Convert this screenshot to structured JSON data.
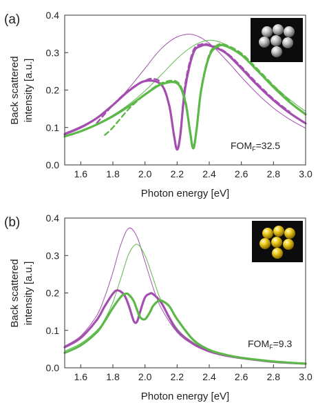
{
  "chart_data": [
    {
      "type": "line",
      "panel_label": "(a)",
      "xlabel": "Photon energy [eV]",
      "ylabel_line1": "Back scattered",
      "ylabel_line2": "intensity [a.u.]",
      "xlim": [
        1.5,
        3.0
      ],
      "ylim": [
        0.0,
        0.4
      ],
      "xticks": [
        1.6,
        1.8,
        2.0,
        2.2,
        2.4,
        2.6,
        2.8,
        3.0
      ],
      "yticks": [
        0.0,
        0.1,
        0.2,
        0.3,
        0.4
      ],
      "xtick_labels": [
        "1.6",
        "1.8",
        "2.0",
        "2.2",
        "2.4",
        "2.6",
        "2.8",
        "3.0"
      ],
      "ytick_labels": [
        "0.0",
        "0.1",
        "0.2",
        "0.3",
        "0.4"
      ],
      "annotation_main": "FOM",
      "annotation_sub": "F",
      "annotation_value": "=32.5",
      "inset": "silver-heptamer",
      "grid": false,
      "series": [
        {
          "color": "#a44fb0",
          "style": "thin",
          "x": [
            1.5,
            1.6,
            1.7,
            1.8,
            1.9,
            2.0,
            2.1,
            2.2,
            2.3,
            2.4,
            2.5,
            2.6,
            2.7,
            2.8,
            2.9,
            3.0
          ],
          "y": [
            0.085,
            0.103,
            0.127,
            0.16,
            0.205,
            0.258,
            0.31,
            0.342,
            0.348,
            0.325,
            0.283,
            0.235,
            0.19,
            0.152,
            0.122,
            0.098
          ]
        },
        {
          "color": "#5cb848",
          "style": "thin",
          "x": [
            1.5,
            1.6,
            1.7,
            1.8,
            1.9,
            2.0,
            2.1,
            2.2,
            2.3,
            2.4,
            2.5,
            2.6,
            2.7,
            2.8,
            2.9,
            3.0
          ],
          "y": [
            0.078,
            0.092,
            0.11,
            0.133,
            0.162,
            0.198,
            0.24,
            0.284,
            0.318,
            0.333,
            0.322,
            0.292,
            0.253,
            0.212,
            0.175,
            0.143
          ]
        },
        {
          "color": "#a44fb0",
          "style": "thick",
          "x": [
            1.5,
            1.6,
            1.7,
            1.8,
            1.9,
            2.0,
            2.1,
            2.15,
            2.18,
            2.2,
            2.22,
            2.25,
            2.3,
            2.35,
            2.4,
            2.5,
            2.6,
            2.7,
            2.8,
            2.9,
            3.0
          ],
          "y": [
            0.082,
            0.1,
            0.125,
            0.16,
            0.198,
            0.224,
            0.215,
            0.16,
            0.08,
            0.041,
            0.08,
            0.205,
            0.298,
            0.318,
            0.319,
            0.3,
            0.258,
            0.213,
            0.173,
            0.139,
            0.111
          ]
        },
        {
          "color": "#a44fb0",
          "style": "dashed",
          "x": [
            1.7,
            1.8,
            1.9,
            2.0,
            2.05,
            2.1,
            2.15,
            2.18,
            2.2,
            2.22,
            2.25,
            2.3,
            2.35,
            2.4,
            2.5,
            2.6,
            2.7,
            2.8,
            2.9
          ],
          "y": [
            0.112,
            0.16,
            0.2,
            0.225,
            0.23,
            0.218,
            0.16,
            0.08,
            0.045,
            0.085,
            0.215,
            0.305,
            0.322,
            0.321,
            0.302,
            0.262,
            0.217,
            0.176,
            0.142
          ]
        },
        {
          "color": "#5cb848",
          "style": "thick",
          "x": [
            1.5,
            1.6,
            1.7,
            1.8,
            1.9,
            2.0,
            2.1,
            2.2,
            2.25,
            2.28,
            2.3,
            2.32,
            2.35,
            2.4,
            2.45,
            2.5,
            2.6,
            2.7,
            2.8,
            2.9,
            3.0
          ],
          "y": [
            0.076,
            0.09,
            0.108,
            0.13,
            0.157,
            0.188,
            0.215,
            0.218,
            0.17,
            0.09,
            0.044,
            0.09,
            0.2,
            0.29,
            0.316,
            0.318,
            0.294,
            0.252,
            0.208,
            0.168,
            0.135
          ]
        },
        {
          "color": "#5cb848",
          "style": "dashed",
          "x": [
            1.75,
            1.8,
            1.9,
            2.0,
            2.1,
            2.2,
            2.25,
            2.28,
            2.3,
            2.32,
            2.35,
            2.4,
            2.45,
            2.5,
            2.6,
            2.7,
            2.8,
            2.9
          ],
          "y": [
            0.08,
            0.1,
            0.15,
            0.188,
            0.218,
            0.222,
            0.175,
            0.095,
            0.05,
            0.095,
            0.205,
            0.295,
            0.32,
            0.321,
            0.298,
            0.256,
            0.212,
            0.172
          ]
        }
      ]
    },
    {
      "type": "line",
      "panel_label": "(b)",
      "xlabel": "Photon energy [eV]",
      "ylabel_line1": "Back scattered",
      "ylabel_line2": "intensity [a.u.]",
      "xlim": [
        1.5,
        3.0
      ],
      "ylim": [
        0.0,
        0.4
      ],
      "xticks": [
        1.6,
        1.8,
        2.0,
        2.2,
        2.4,
        2.6,
        2.8,
        3.0
      ],
      "yticks": [
        0.0,
        0.1,
        0.2,
        0.3,
        0.4
      ],
      "xtick_labels": [
        "1.6",
        "1.8",
        "2.0",
        "2.2",
        "2.4",
        "2.6",
        "2.8",
        "3.0"
      ],
      "ytick_labels": [
        "0.0",
        "0.1",
        "0.2",
        "0.3",
        "0.4"
      ],
      "annotation_main": "FOM",
      "annotation_sub": "F",
      "annotation_value": "=9.3",
      "inset": "gold-heptamer",
      "grid": false,
      "series": [
        {
          "color": "#a44fb0",
          "style": "thin",
          "x": [
            1.5,
            1.6,
            1.7,
            1.75,
            1.8,
            1.85,
            1.9,
            1.95,
            2.0,
            2.05,
            2.1,
            2.2,
            2.3,
            2.4,
            2.5,
            2.6,
            2.8,
            3.0
          ],
          "y": [
            0.058,
            0.085,
            0.14,
            0.19,
            0.255,
            0.33,
            0.373,
            0.35,
            0.283,
            0.215,
            0.16,
            0.095,
            0.062,
            0.043,
            0.032,
            0.025,
            0.016,
            0.011
          ]
        },
        {
          "color": "#5cb848",
          "style": "thin",
          "x": [
            1.5,
            1.6,
            1.7,
            1.75,
            1.8,
            1.85,
            1.9,
            1.95,
            2.0,
            2.05,
            2.1,
            2.2,
            2.3,
            2.4,
            2.5,
            2.6,
            2.8,
            3.0
          ],
          "y": [
            0.045,
            0.065,
            0.1,
            0.13,
            0.175,
            0.24,
            0.305,
            0.33,
            0.3,
            0.24,
            0.18,
            0.105,
            0.068,
            0.047,
            0.035,
            0.027,
            0.017,
            0.011
          ]
        },
        {
          "color": "#a44fb0",
          "style": "thick",
          "x": [
            1.5,
            1.6,
            1.7,
            1.75,
            1.8,
            1.83,
            1.87,
            1.9,
            1.93,
            1.95,
            1.97,
            2.0,
            2.03,
            2.05,
            2.1,
            2.15,
            2.2,
            2.3,
            2.4,
            2.5,
            2.6,
            2.8,
            3.0
          ],
          "y": [
            0.055,
            0.08,
            0.128,
            0.165,
            0.198,
            0.207,
            0.195,
            0.165,
            0.125,
            0.123,
            0.15,
            0.188,
            0.198,
            0.197,
            0.175,
            0.135,
            0.1,
            0.064,
            0.044,
            0.033,
            0.026,
            0.016,
            0.011
          ]
        },
        {
          "color": "#5cb848",
          "style": "thick",
          "x": [
            1.5,
            1.6,
            1.7,
            1.75,
            1.8,
            1.85,
            1.88,
            1.9,
            1.93,
            1.95,
            1.97,
            2.0,
            2.03,
            2.05,
            2.08,
            2.1,
            2.15,
            2.2,
            2.3,
            2.4,
            2.5,
            2.6,
            2.8,
            3.0
          ],
          "y": [
            0.04,
            0.06,
            0.095,
            0.125,
            0.16,
            0.19,
            0.198,
            0.195,
            0.178,
            0.155,
            0.135,
            0.13,
            0.148,
            0.165,
            0.178,
            0.18,
            0.165,
            0.13,
            0.075,
            0.048,
            0.035,
            0.027,
            0.017,
            0.011
          ]
        }
      ]
    }
  ]
}
